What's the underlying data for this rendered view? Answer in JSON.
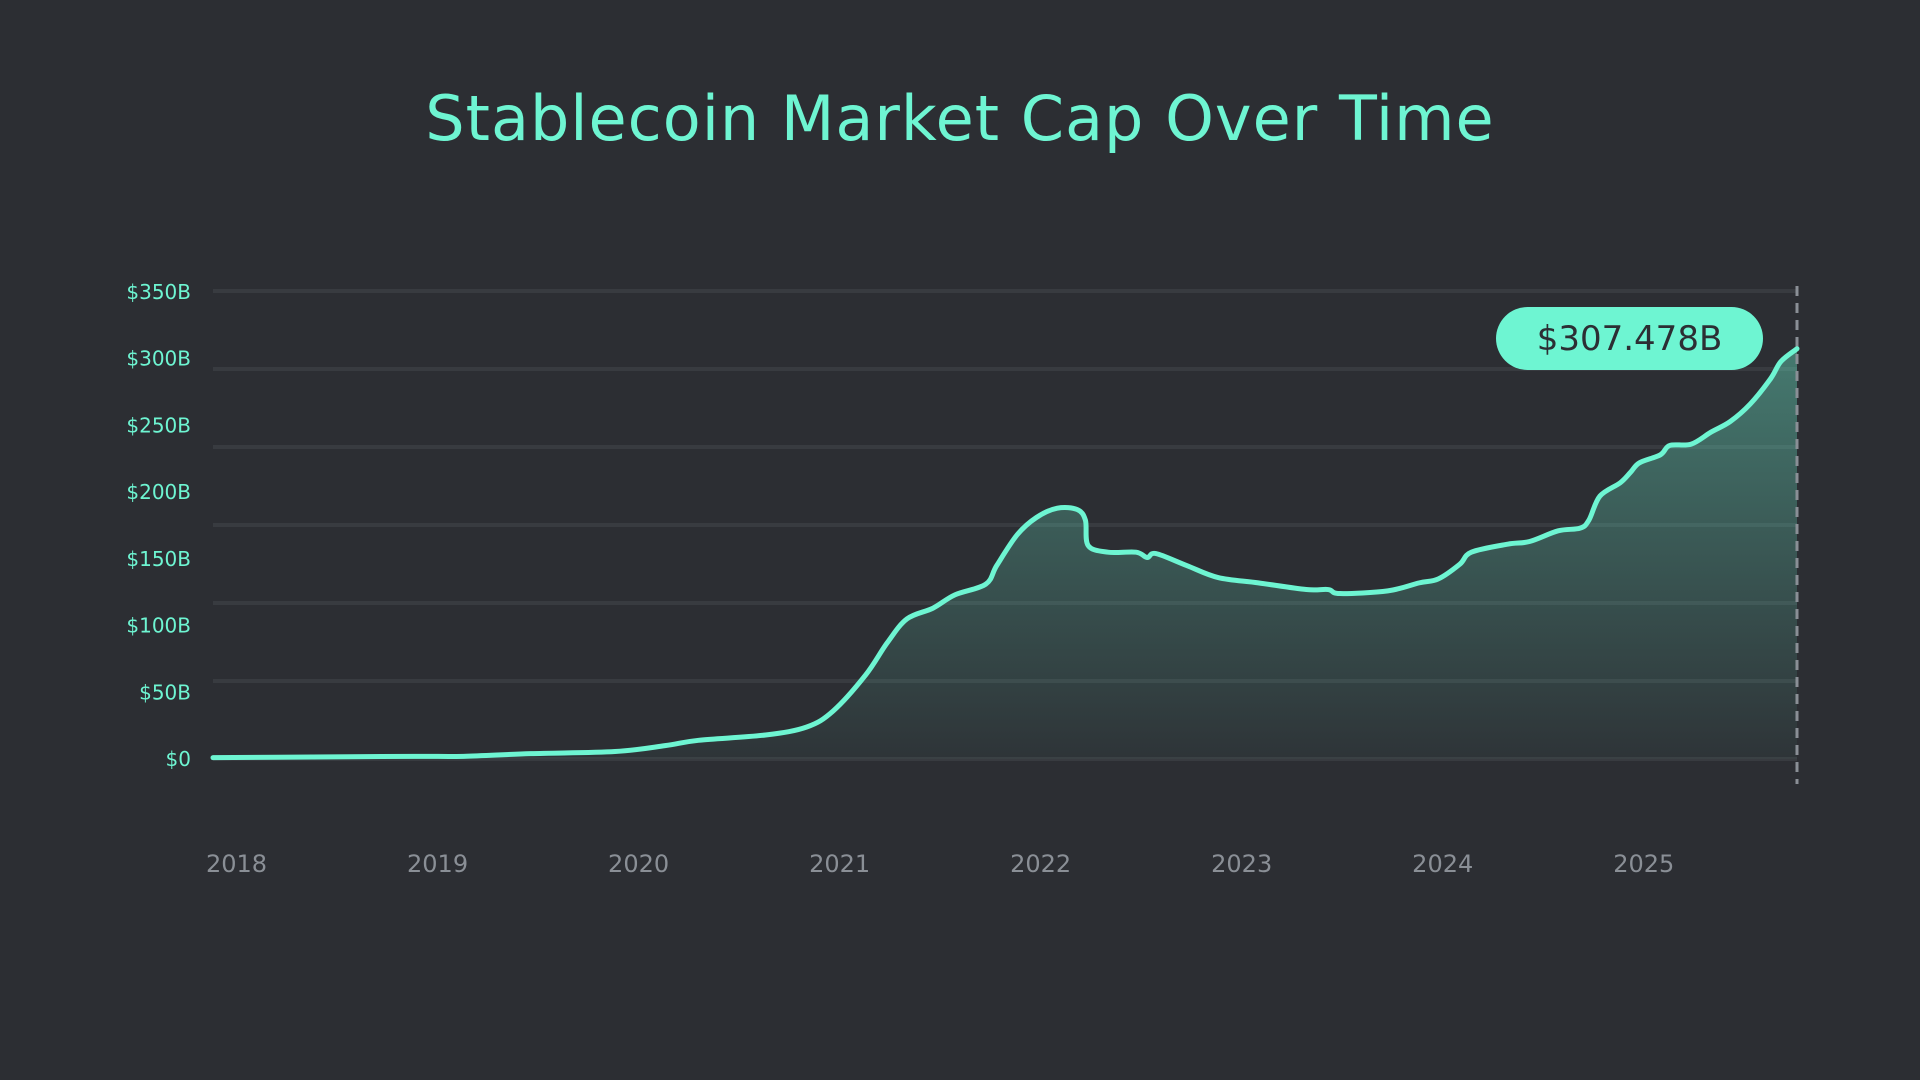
{
  "chart_data": {
    "type": "area",
    "title": "Stablecoin Market Cap Over Time",
    "xlabel": "",
    "ylabel": "",
    "ylim": [
      0,
      350
    ],
    "y_ticks": [
      "$0",
      "$50B",
      "$100B",
      "$150B",
      "$200B",
      "$250B",
      "$300B",
      "$350B"
    ],
    "y_tick_values": [
      0,
      50,
      100,
      150,
      200,
      250,
      300,
      350
    ],
    "x_ticks": [
      "2018",
      "2019",
      "2020",
      "2021",
      "2022",
      "2023",
      "2024",
      "2025"
    ],
    "xlim": [
      "2018-01-01",
      "2025-11-18"
    ],
    "grid": true,
    "latest_value_label": "$307.478B",
    "colors": {
      "line": "#6ef5d2",
      "background": "#2c2e33",
      "grid": "#383b40",
      "x_tick": "#8a8f96",
      "marker_line": "#8a8f96"
    },
    "series": [
      {
        "x": [
          "2018-01-01",
          "2018-07-01",
          "2019-01-01",
          "2019-04-01",
          "2019-08-01",
          "2020-01-01",
          "2020-04-01",
          "2020-06-01",
          "2020-10-01",
          "2020-12-15",
          "2021-02-01",
          "2021-04-01",
          "2021-05-10",
          "2021-06-15",
          "2021-08-01",
          "2021-09-10",
          "2021-11-05",
          "2021-11-25",
          "2022-01-01",
          "2022-02-05",
          "2022-03-15",
          "2022-04-20",
          "2022-05-05",
          "2022-05-10",
          "2022-06-15",
          "2022-08-05",
          "2022-08-25",
          "2022-09-10",
          "2022-11-05",
          "2023-01-01",
          "2023-03-15",
          "2023-06-10",
          "2023-07-20",
          "2023-08-10",
          "2023-11-05",
          "2024-01-01",
          "2024-02-05",
          "2024-03-15",
          "2024-04-05",
          "2024-06-10",
          "2024-07-20",
          "2024-09-10",
          "2024-10-20",
          "2024-11-05",
          "2024-11-25",
          "2025-01-01",
          "2025-01-20",
          "2025-02-05",
          "2025-03-15",
          "2025-04-01",
          "2025-05-10",
          "2025-06-15",
          "2025-07-20",
          "2025-08-25",
          "2025-10-01",
          "2025-10-20",
          "2025-11-18"
        ],
        "values": [
          1,
          1.5,
          2,
          2,
          4,
          5.6,
          10,
          14,
          18,
          24,
          36,
          63,
          87,
          105,
          113,
          123,
          131,
          145,
          168,
          181,
          188,
          187,
          179,
          160,
          155,
          155,
          151,
          154,
          145,
          136,
          132,
          127,
          127,
          124,
          126,
          132,
          135,
          146,
          155,
          161,
          163,
          171,
          173,
          179,
          197,
          207,
          215,
          222,
          228,
          235,
          236,
          245,
          253,
          266,
          285,
          298,
          307.478
        ]
      }
    ]
  }
}
